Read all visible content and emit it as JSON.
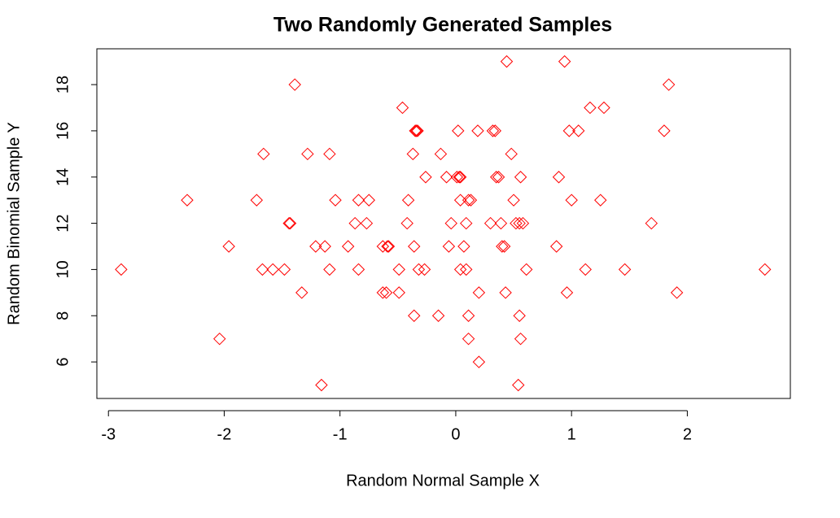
{
  "chart_data": {
    "type": "scatter",
    "title": "Two Randomly Generated Samples",
    "x_label": "Random Normal Sample X",
    "y_label": "Random Binomial Sample Y",
    "color": "#ff0000",
    "marker": "diamond",
    "xlim": [
      -3.1,
      2.89
    ],
    "ylim": [
      4.42,
      19.55
    ],
    "xticks": [
      -3,
      -2,
      -1,
      0,
      1,
      2
    ],
    "yticks": [
      6,
      8,
      10,
      12,
      14,
      16,
      18
    ],
    "x": [
      -2.89,
      -2.32,
      -2.04,
      -1.96,
      -1.72,
      -1.66,
      -1.67,
      -1.58,
      -1.48,
      -1.44,
      -1.43,
      -1.39,
      -1.33,
      -1.28,
      -1.21,
      -1.16,
      -1.13,
      -1.09,
      -1.09,
      -1.04,
      -0.93,
      -0.87,
      -0.84,
      -0.84,
      -0.77,
      -0.75,
      -0.63,
      -0.63,
      -0.6,
      -0.59,
      -0.58,
      -0.49,
      -0.49,
      -0.46,
      -0.42,
      -0.41,
      -0.37,
      -0.36,
      -0.36,
      -0.35,
      -0.34,
      -0.33,
      -0.32,
      -0.27,
      -0.26,
      -0.15,
      -0.13,
      -0.08,
      -0.06,
      -0.04,
      0.01,
      0.02,
      0.03,
      0.04,
      0.04,
      0.04,
      0.07,
      0.09,
      0.09,
      0.11,
      0.11,
      0.11,
      0.13,
      0.19,
      0.2,
      0.2,
      0.3,
      0.32,
      0.34,
      0.35,
      0.37,
      0.39,
      0.4,
      0.42,
      0.43,
      0.44,
      0.48,
      0.5,
      0.52,
      0.54,
      0.55,
      0.55,
      0.56,
      0.56,
      0.58,
      0.61,
      0.87,
      0.89,
      0.94,
      0.96,
      0.98,
      1.0,
      1.06,
      1.12,
      1.16,
      1.25,
      1.28,
      1.46,
      1.69,
      1.8,
      1.84,
      1.91,
      2.67
    ],
    "y": [
      10,
      13,
      7,
      11,
      13,
      15,
      10,
      10,
      10,
      12,
      12,
      18,
      9,
      15,
      11,
      5,
      11,
      15,
      10,
      13,
      11,
      12,
      10,
      13,
      12,
      13,
      9,
      11,
      9,
      11,
      11,
      10,
      9,
      17,
      12,
      13,
      15,
      8,
      11,
      16,
      16,
      16,
      10,
      10,
      14,
      8,
      15,
      14,
      11,
      12,
      14,
      16,
      14,
      10,
      14,
      13,
      11,
      12,
      10,
      7,
      8,
      13,
      13,
      16,
      9,
      6,
      12,
      16,
      16,
      14,
      14,
      12,
      11,
      11,
      9,
      19,
      15,
      13,
      12,
      5,
      12,
      8,
      14,
      7,
      12,
      10,
      11,
      14,
      19,
      9,
      16,
      13,
      16,
      10,
      17,
      13,
      17,
      10,
      12,
      16,
      18,
      9,
      10
    ]
  }
}
